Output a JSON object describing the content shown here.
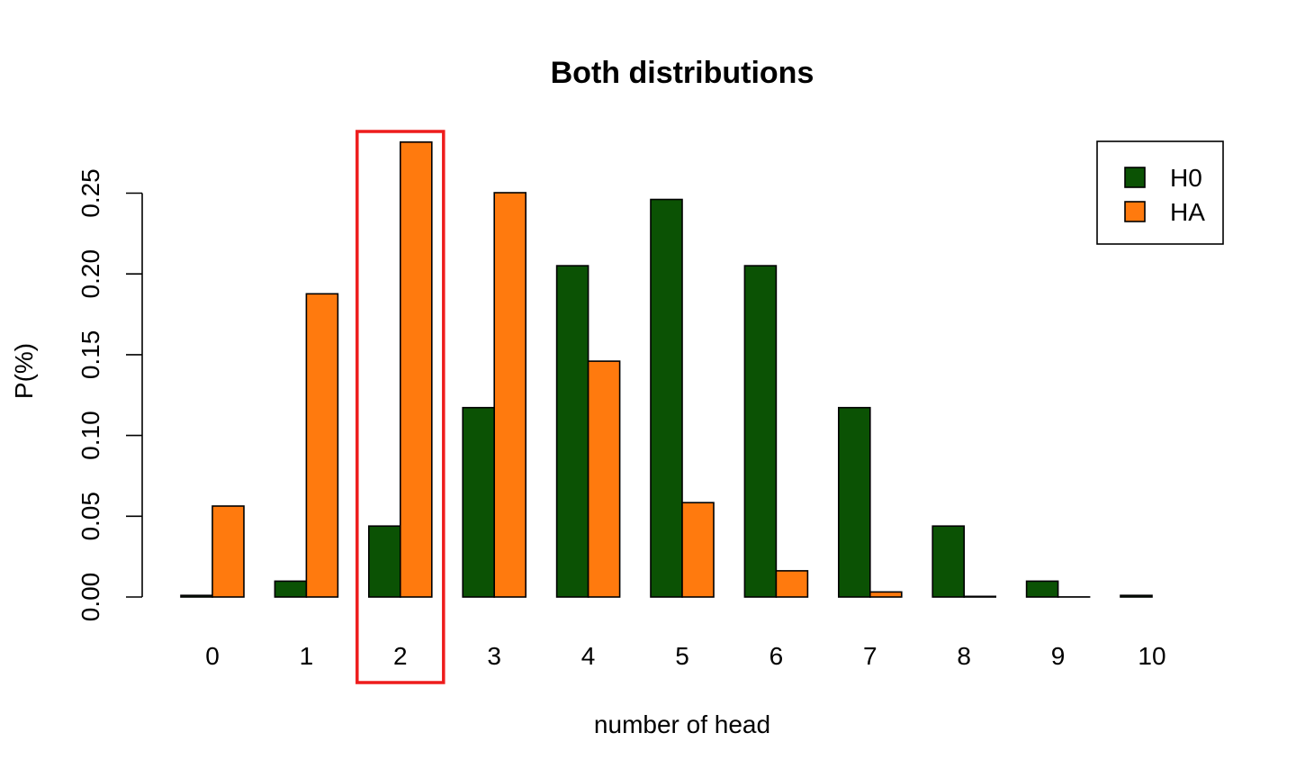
{
  "chart_data": {
    "type": "bar",
    "title": "Both distributions",
    "xlabel": "number of head",
    "ylabel": "P(%)",
    "categories": [
      "0",
      "1",
      "2",
      "3",
      "4",
      "5",
      "6",
      "7",
      "8",
      "9",
      "10"
    ],
    "series": [
      {
        "name": "H0",
        "color": "#0b5204",
        "values": [
          0.001,
          0.0098,
          0.0439,
          0.1172,
          0.2051,
          0.2461,
          0.2051,
          0.1172,
          0.0439,
          0.0098,
          0.001
        ]
      },
      {
        "name": "HA",
        "color": "#ff7a0e",
        "values": [
          0.0563,
          0.1877,
          0.2816,
          0.2503,
          0.146,
          0.0584,
          0.0162,
          0.0031,
          0.0004,
          3e-05,
          1e-06
        ]
      }
    ],
    "yticks": [
      0.0,
      0.05,
      0.1,
      0.15,
      0.2,
      0.25
    ],
    "ytick_labels": [
      "0.00",
      "0.05",
      "0.10",
      "0.15",
      "0.20",
      "0.25"
    ],
    "ylim": [
      0,
      0.29
    ],
    "grid": false,
    "legend_position": "top-right",
    "highlight": {
      "category": "2",
      "color": "#ee1c1c"
    }
  }
}
